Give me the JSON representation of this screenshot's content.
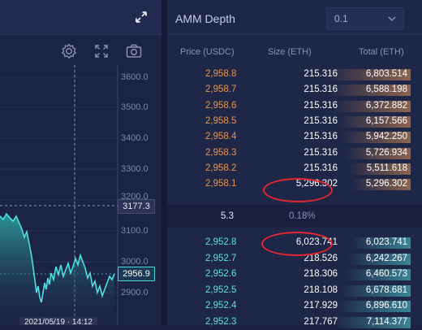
{
  "chart": {
    "y_axis_ticks": [
      "3600.0",
      "3500.0",
      "3400.0",
      "3300.0",
      "3200.0",
      "3100.0",
      "3000.0",
      "2900.0"
    ],
    "crosshair_price": "3177.3",
    "last_price": "2956.9",
    "crosshair_time": "2021/05/19 · 14:12",
    "colors": {
      "line": "#4ee0e0",
      "background": "#1c2446"
    }
  },
  "depth": {
    "title": "AMM Depth",
    "precision_value": "0.1",
    "columns": {
      "price": "Price (USDC)",
      "size": "Size (ETH)",
      "total": "Total (ETH)"
    },
    "asks": [
      {
        "price": "2,958.8",
        "size": "215.316",
        "total": "6,803.514",
        "depth": 0.95
      },
      {
        "price": "2,958.7",
        "size": "215.316",
        "total": "6,588.198",
        "depth": 0.91
      },
      {
        "price": "2,958.6",
        "size": "215.316",
        "total": "6,372.882",
        "depth": 0.86
      },
      {
        "price": "2,958.5",
        "size": "215.316",
        "total": "6,157.566",
        "depth": 0.82
      },
      {
        "price": "2,958.4",
        "size": "215.316",
        "total": "5,942.250",
        "depth": 0.78
      },
      {
        "price": "2,958.3",
        "size": "215.316",
        "total": "5,726.934",
        "depth": 0.74
      },
      {
        "price": "2,958.2",
        "size": "215.316",
        "total": "5,511.618",
        "depth": 0.7
      },
      {
        "price": "2,958.1",
        "size": "5,296.302",
        "total": "5,296.302",
        "depth": 0.66
      }
    ],
    "spread": {
      "value": "5.3",
      "percent": "0.18%"
    },
    "bids": [
      {
        "price": "2,952.8",
        "size": "6,023.741",
        "total": "6,023.741",
        "depth": 0.66
      },
      {
        "price": "2,952.7",
        "size": "218.526",
        "total": "6,242.267",
        "depth": 0.7
      },
      {
        "price": "2,952.6",
        "size": "218.306",
        "total": "6,460.573",
        "depth": 0.74
      },
      {
        "price": "2,952.5",
        "size": "218.108",
        "total": "6,678.681",
        "depth": 0.78
      },
      {
        "price": "2,952.4",
        "size": "217.929",
        "total": "6,896.610",
        "depth": 0.82
      },
      {
        "price": "2,952.3",
        "size": "217.767",
        "total": "7,114.377",
        "depth": 0.86
      }
    ],
    "colors": {
      "ask": "#e7964f",
      "bid": "#5fe0dd",
      "highlight": "#e3262f"
    }
  },
  "icons": [
    "expand-icon",
    "settings-gear-icon",
    "fullscreen-icon",
    "camera-icon",
    "chevron-down-icon"
  ]
}
